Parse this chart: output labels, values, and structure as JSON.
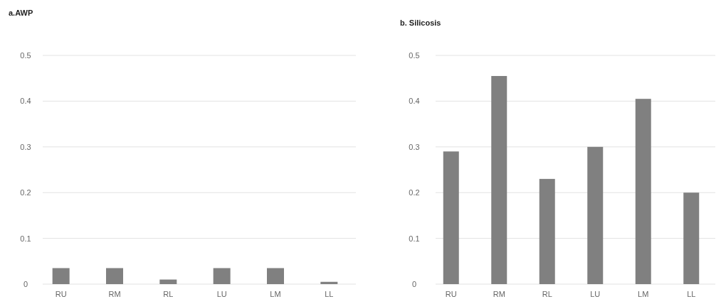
{
  "chart_data": [
    {
      "type": "bar",
      "title": "a.AWP",
      "categories": [
        "RU",
        "RM",
        "RL",
        "LU",
        "LM",
        "LL"
      ],
      "values": [
        0.035,
        0.035,
        0.01,
        0.035,
        0.035,
        0.005
      ],
      "color": "#808080",
      "ylim": [
        0,
        0.5
      ],
      "yticks": [
        0,
        0.1,
        0.2,
        0.3,
        0.4,
        0.5
      ],
      "grid": "y"
    },
    {
      "type": "bar",
      "title": "b. Silicosis",
      "categories": [
        "RU",
        "RM",
        "RL",
        "LU",
        "LM",
        "LL"
      ],
      "values": [
        0.29,
        0.455,
        0.23,
        0.3,
        0.405,
        0.2
      ],
      "color": "#808080",
      "ylim": [
        0,
        0.5
      ],
      "yticks": [
        0,
        0.1,
        0.2,
        0.3,
        0.4,
        0.5
      ],
      "grid": "y"
    }
  ]
}
